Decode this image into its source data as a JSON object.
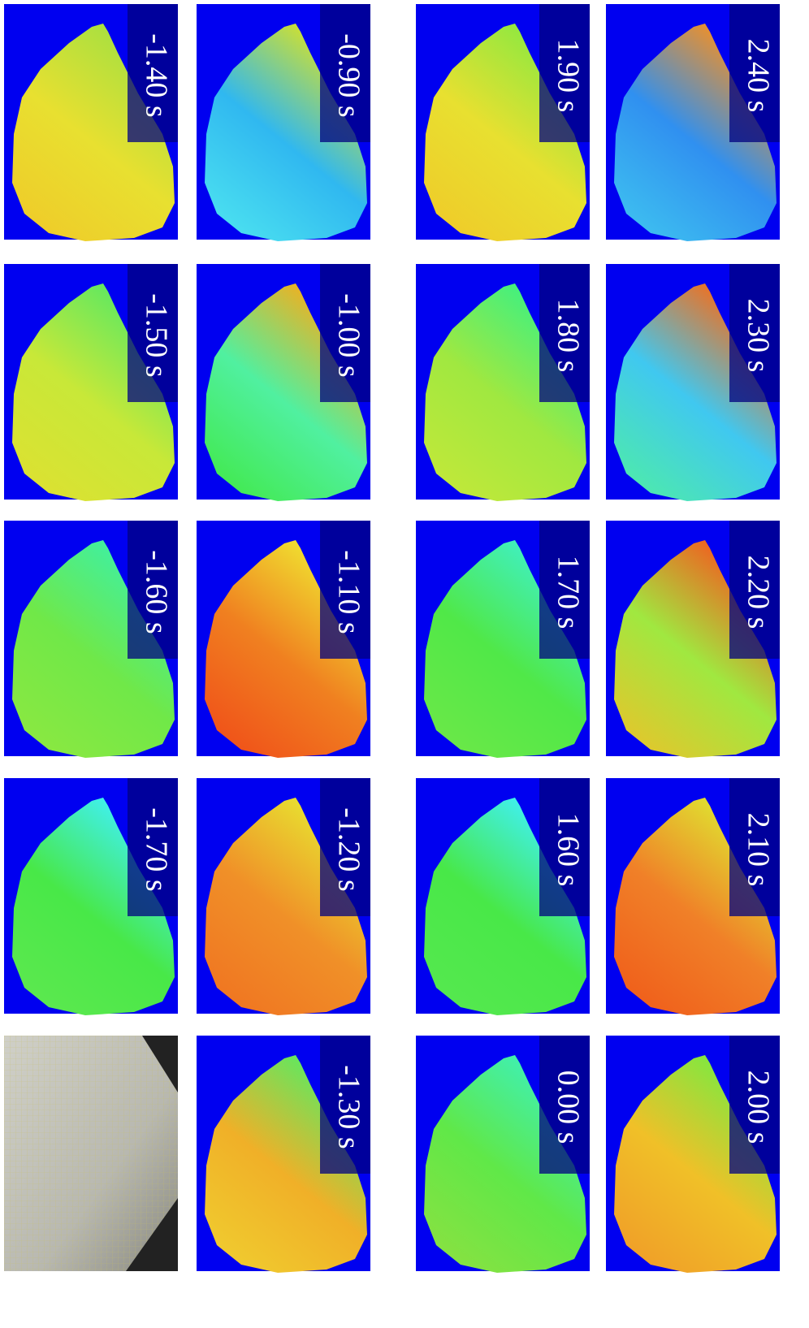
{
  "panels": [
    {
      "label": "-1.40 s",
      "colors": [
        "#e8e030",
        "#f0c828",
        "#a8e040"
      ]
    },
    {
      "label": "-1.50 s",
      "colors": [
        "#c8e838",
        "#e0e030",
        "#60e860"
      ]
    },
    {
      "label": "-1.60 s",
      "colors": [
        "#70e848",
        "#90e840",
        "#40f0a0"
      ]
    },
    {
      "label": "-1.70 s",
      "colors": [
        "#48e848",
        "#60e850",
        "#40f0f0"
      ]
    },
    {
      "label": null,
      "colors": [
        "#b8b8b0",
        "#d0d0c8",
        "#888880"
      ]
    },
    {
      "label": "-0.90 s",
      "colors": [
        "#30b8f0",
        "#50e8f0",
        "#d0e030"
      ]
    },
    {
      "label": "-1.00 s",
      "colors": [
        "#50f0a0",
        "#40e840",
        "#f0b020"
      ]
    },
    {
      "label": "-1.10 s",
      "colors": [
        "#f08020",
        "#f04818",
        "#f0e030"
      ]
    },
    {
      "label": "-1.20 s",
      "colors": [
        "#f09028",
        "#f07020",
        "#e8e030"
      ]
    },
    {
      "label": "-1.30 s",
      "colors": [
        "#f0b028",
        "#f0d030",
        "#60e860"
      ]
    },
    {
      "label": "1.90 s",
      "colors": [
        "#e8e030",
        "#f0c828",
        "#90e840"
      ]
    },
    {
      "label": "1.80 s",
      "colors": [
        "#a0e840",
        "#c8e838",
        "#40f080"
      ]
    },
    {
      "label": "1.70 s",
      "colors": [
        "#50e848",
        "#70e848",
        "#40f0c0"
      ]
    },
    {
      "label": "1.60 s",
      "colors": [
        "#48e848",
        "#58e850",
        "#40f0f0"
      ]
    },
    {
      "label": "0.00 s",
      "colors": [
        "#60e848",
        "#90e040",
        "#40f0b0"
      ]
    },
    {
      "label": "2.40 s",
      "colors": [
        "#3090f0",
        "#40c8f0",
        "#f09028"
      ]
    },
    {
      "label": "2.30 s",
      "colors": [
        "#40c8f0",
        "#50f0a0",
        "#f07020"
      ]
    },
    {
      "label": "2.20 s",
      "colors": [
        "#a0e840",
        "#f0c028",
        "#f06020"
      ]
    },
    {
      "label": "2.10 s",
      "colors": [
        "#f08028",
        "#f05818",
        "#e0e030"
      ]
    },
    {
      "label": "2.00 s",
      "colors": [
        "#f0c028",
        "#f09828",
        "#80e840"
      ]
    }
  ]
}
